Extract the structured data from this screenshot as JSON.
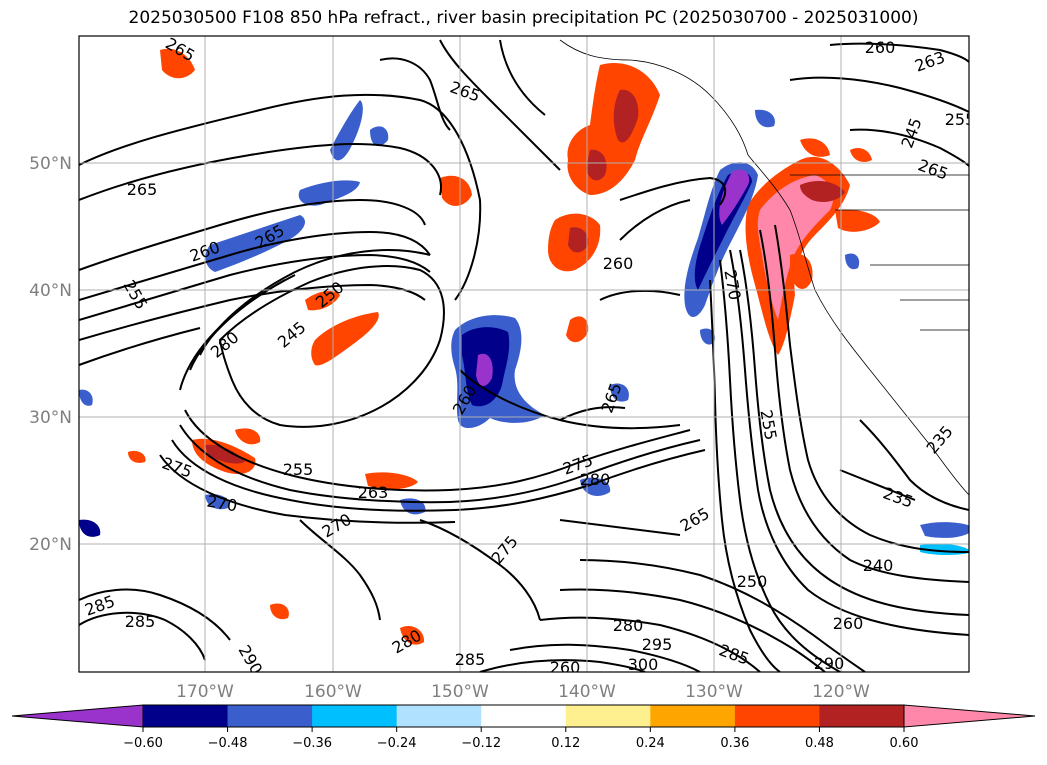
{
  "title": "2025030500 F108 850 hPa refract., river basin precipitation PC (2025030700 - 2025031000)",
  "latitude_labels": [
    "50°N",
    "40°N",
    "30°N",
    "20°N"
  ],
  "longitude_labels": [
    "170°W",
    "160°W",
    "150°W",
    "140°W",
    "130°W",
    "120°W"
  ],
  "colorbar": {
    "colors": [
      "#9933cc",
      "#00008b",
      "#3a5fcd",
      "#00bfff",
      "#b0e2ff",
      "#ffffff",
      "#fff08f",
      "#ffa500",
      "#ff4500",
      "#b22222",
      "#ff88aa"
    ],
    "tick_labels": [
      "−0.60",
      "−0.48",
      "−0.36",
      "−0.24",
      "−0.12",
      "0.12",
      "0.24",
      "0.36",
      "0.48",
      "0.60"
    ]
  },
  "contour_labels": [
    {
      "text": "265"
    },
    {
      "text": "263"
    },
    {
      "text": "260"
    },
    {
      "text": "265"
    },
    {
      "text": "265"
    },
    {
      "text": "260"
    },
    {
      "text": "255"
    },
    {
      "text": "250"
    },
    {
      "text": "245"
    },
    {
      "text": "280"
    },
    {
      "text": "265"
    },
    {
      "text": "260"
    },
    {
      "text": "260"
    },
    {
      "text": "265"
    },
    {
      "text": "270"
    },
    {
      "text": "275"
    },
    {
      "text": "280"
    },
    {
      "text": "270"
    },
    {
      "text": "255"
    },
    {
      "text": "263"
    },
    {
      "text": "275"
    },
    {
      "text": "270"
    },
    {
      "text": "275"
    },
    {
      "text": "255"
    },
    {
      "text": "265"
    },
    {
      "text": "250"
    },
    {
      "text": "240"
    },
    {
      "text": "235"
    },
    {
      "text": "285"
    },
    {
      "text": "285"
    },
    {
      "text": "280"
    },
    {
      "text": "285"
    },
    {
      "text": "280"
    },
    {
      "text": "295"
    },
    {
      "text": "300"
    },
    {
      "text": "285"
    },
    {
      "text": "260"
    },
    {
      "text": "290"
    },
    {
      "text": "290"
    },
    {
      "text": "260"
    },
    {
      "text": "235"
    },
    {
      "text": "265"
    },
    {
      "text": "245"
    },
    {
      "text": "255"
    }
  ]
}
